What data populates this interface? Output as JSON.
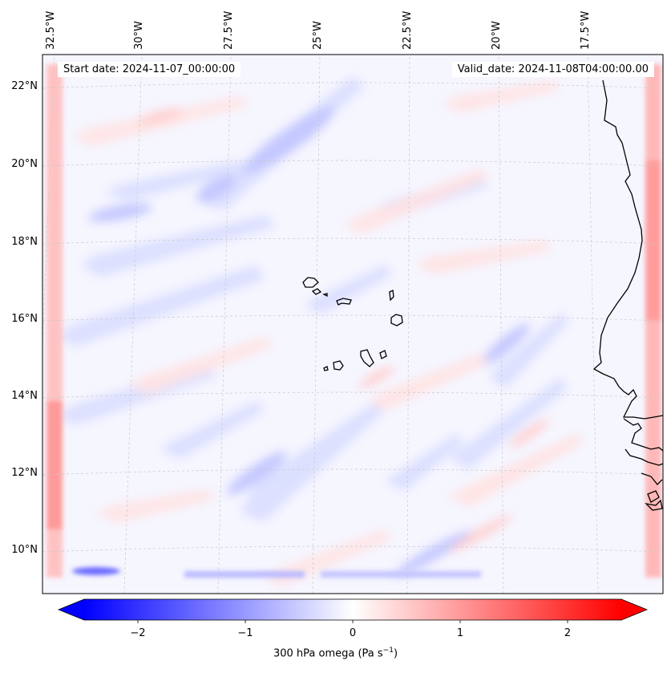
{
  "map": {
    "start_label": "Start date: 2024-11-07_00:00:00",
    "valid_label": "Valid_date: 2024-11-08T04:00:00.00",
    "lon_labels": [
      "32.5°W",
      "30°W",
      "27.5°W",
      "25°W",
      "22.5°W",
      "20°W",
      "17.5°W"
    ],
    "lat_labels": [
      "22°N",
      "20°N",
      "18°N",
      "16°N",
      "14°N",
      "12°N",
      "10°N"
    ],
    "field": "300 hPa omega",
    "colormap": {
      "negative": "#0000ff",
      "zero": "#ffffff",
      "positive": "#ff0000"
    }
  },
  "colorbar": {
    "label_prefix": "300 hPa omega (Pa s",
    "label_exp": "−1",
    "label_suffix": ")",
    "ticks": [
      "−2",
      "−1",
      "0",
      "1",
      "2"
    ],
    "tick_values": [
      -2,
      -1,
      0,
      1,
      2
    ],
    "range": [
      -2.5,
      2.5
    ],
    "extend": "both"
  }
}
